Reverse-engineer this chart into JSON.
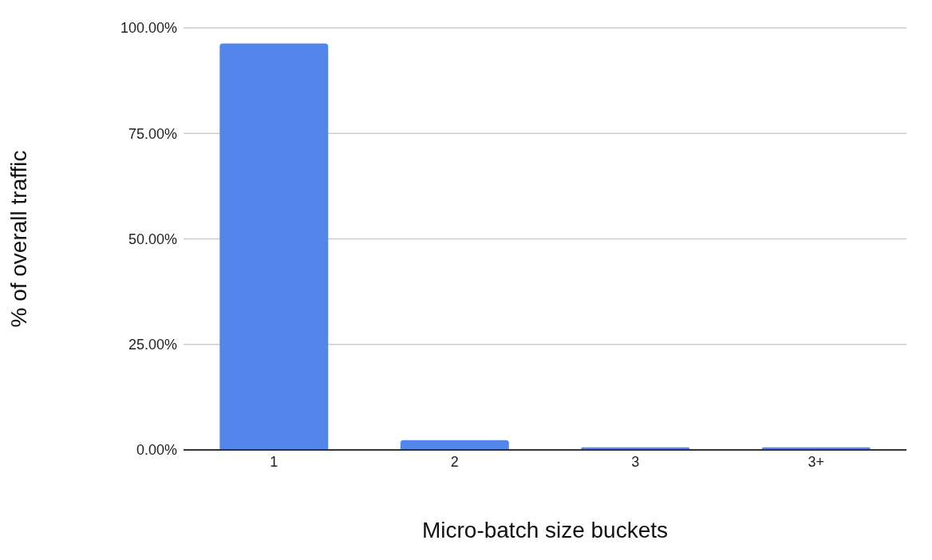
{
  "chart_data": {
    "type": "bar",
    "xlabel": "Micro-batch size buckets",
    "ylabel": "% of overall traffic",
    "categories": [
      "1",
      "2",
      "3",
      "3+"
    ],
    "values": [
      96.3,
      2.3,
      0.6,
      0.6
    ],
    "color": "#5385eb",
    "ylim": [
      0,
      100
    ],
    "yticks": [
      {
        "value": 0,
        "label": "0.00%"
      },
      {
        "value": 25,
        "label": "25.00%"
      },
      {
        "value": 50,
        "label": "50.00%"
      },
      {
        "value": 75,
        "label": "75.00%"
      },
      {
        "value": 100,
        "label": "100.00%"
      }
    ],
    "grid": "y",
    "legend": false
  }
}
